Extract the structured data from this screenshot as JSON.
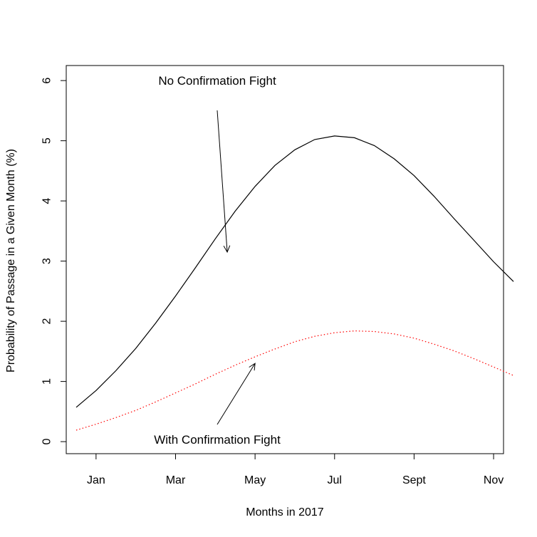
{
  "chart_data": {
    "type": "line",
    "title": "",
    "xlabel": "Months in 2017",
    "ylabel": "Probability of Passage in a Given Month (%)",
    "xlim": [
      0.25,
      11.25
    ],
    "ylim": [
      -0.2,
      6.25
    ],
    "x_ticks": [
      {
        "x": 1,
        "label": "Jan"
      },
      {
        "x": 3,
        "label": "Mar"
      },
      {
        "x": 5,
        "label": "May"
      },
      {
        "x": 7,
        "label": "Jul"
      },
      {
        "x": 9,
        "label": "Sept"
      },
      {
        "x": 11,
        "label": "Nov"
      }
    ],
    "y_ticks": [
      {
        "y": 0,
        "label": "0"
      },
      {
        "y": 1,
        "label": "1"
      },
      {
        "y": 2,
        "label": "2"
      },
      {
        "y": 3,
        "label": "3"
      },
      {
        "y": 4,
        "label": "4"
      },
      {
        "y": 5,
        "label": "5"
      },
      {
        "y": 6,
        "label": "6"
      }
    ],
    "grid": false,
    "series": [
      {
        "color": "#000000",
        "line_style": "solid",
        "x": [
          0.5,
          1.0,
          1.5,
          2.0,
          2.5,
          3.0,
          3.5,
          4.0,
          4.5,
          5.0,
          5.5,
          6.0,
          6.5,
          7.0,
          7.5,
          8.0,
          8.5,
          9.0,
          9.5,
          10.0,
          10.5,
          11.0,
          11.5
        ],
        "values": [
          0.57,
          0.85,
          1.18,
          1.55,
          1.97,
          2.42,
          2.89,
          3.37,
          3.83,
          4.24,
          4.59,
          4.85,
          5.02,
          5.08,
          5.05,
          4.92,
          4.7,
          4.42,
          4.08,
          3.71,
          3.35,
          2.99,
          2.66
        ]
      },
      {
        "color": "#ff0000",
        "line_style": "dotted",
        "x": [
          0.5,
          1.0,
          1.5,
          2.0,
          2.5,
          3.0,
          3.5,
          4.0,
          4.5,
          5.0,
          5.5,
          6.0,
          6.5,
          7.0,
          7.5,
          8.0,
          8.5,
          9.0,
          9.5,
          10.0,
          10.5,
          11.0,
          11.5
        ],
        "values": [
          0.19,
          0.29,
          0.4,
          0.52,
          0.66,
          0.81,
          0.96,
          1.12,
          1.27,
          1.41,
          1.54,
          1.66,
          1.75,
          1.81,
          1.84,
          1.83,
          1.79,
          1.72,
          1.62,
          1.51,
          1.38,
          1.24,
          1.1
        ]
      }
    ],
    "annotations": [
      {
        "text": "No Confirmation Fight",
        "arrow_to": {
          "x": 4.3,
          "y": 3.15
        }
      },
      {
        "text": "With Confirmation Fight",
        "arrow_to": {
          "x": 5.0,
          "y": 1.3
        }
      }
    ]
  }
}
